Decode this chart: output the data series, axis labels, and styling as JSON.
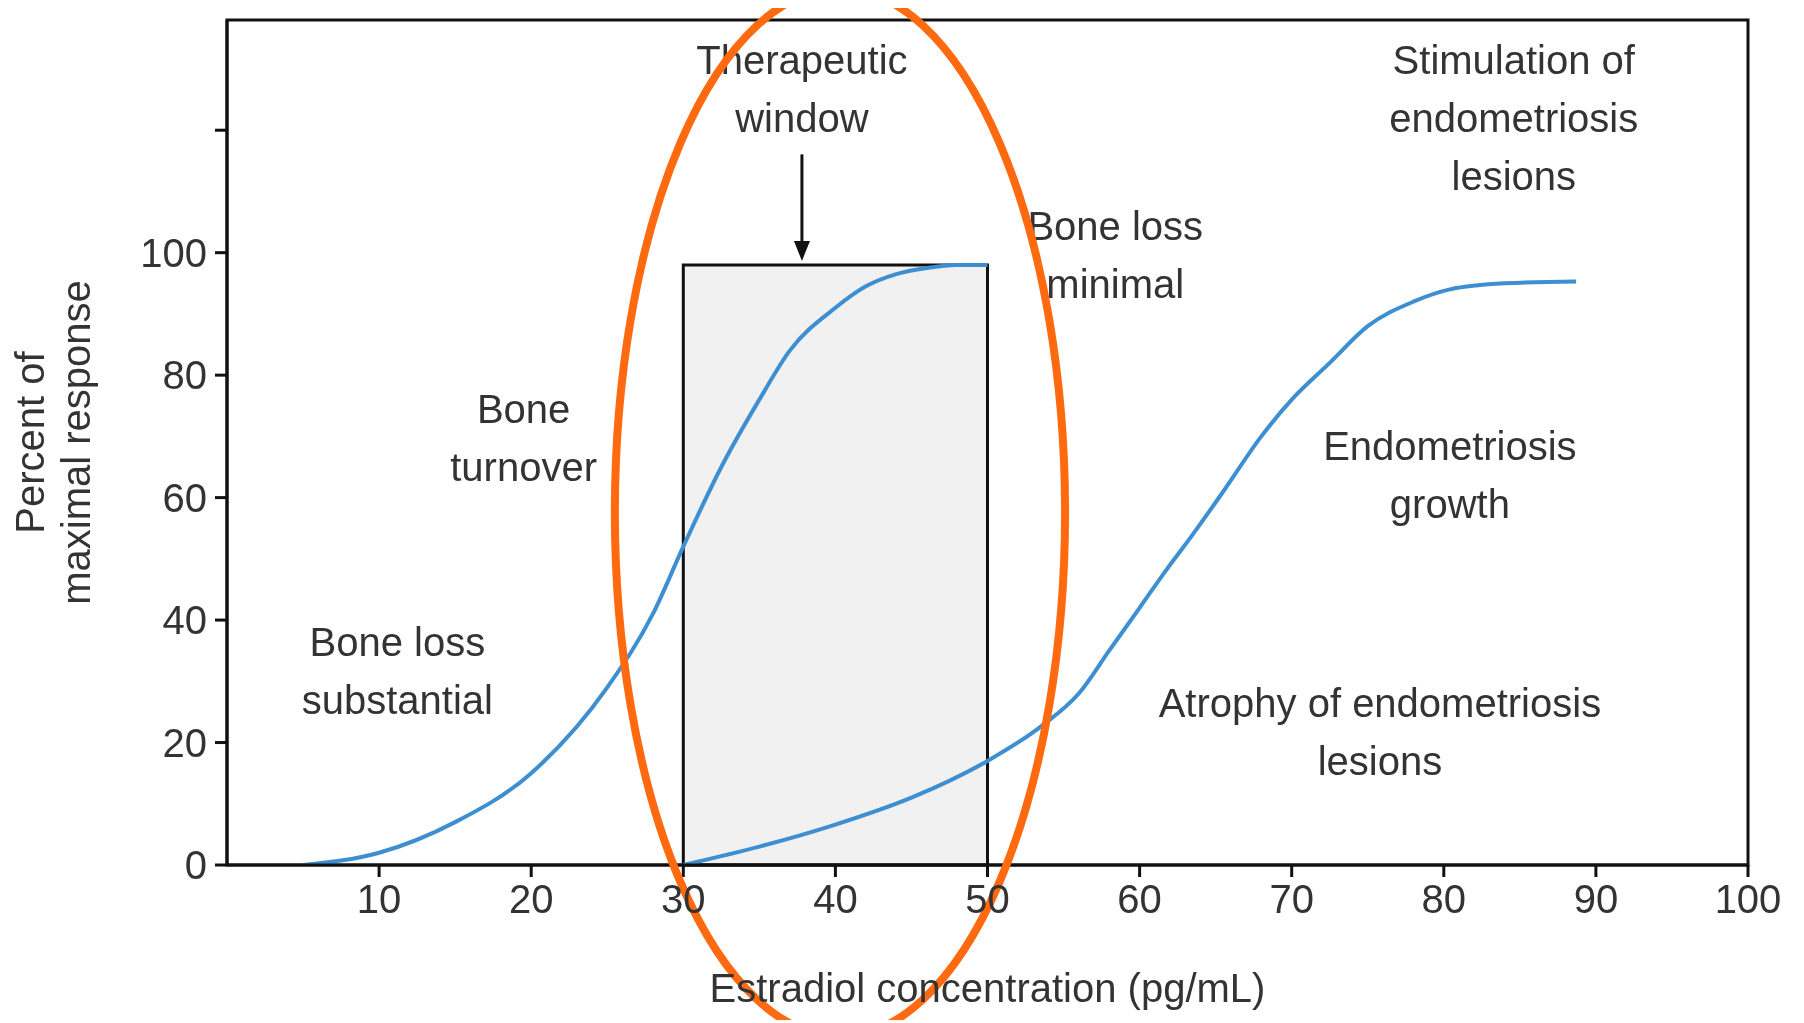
{
  "chart_data": {
    "type": "line",
    "xlabel": "Estradiol concentration (pg/mL)",
    "ylabel": "Percent of\nmaximal response",
    "xlim": [
      0,
      100
    ],
    "xticks": [
      10,
      20,
      30,
      40,
      50,
      60,
      70,
      80,
      90,
      100
    ],
    "ylim": [
      0,
      138
    ],
    "yticks": [
      0,
      20,
      40,
      60,
      80,
      100,
      {
        "value": 120,
        "label": null
      }
    ],
    "series": [
      {
        "color": "#3d8fd1",
        "x": [
          5,
          10,
          15,
          20,
          25,
          28,
          30,
          32.5,
          35,
          37,
          40,
          42,
          44,
          46,
          48,
          50
        ],
        "values": [
          0,
          2,
          7,
          15,
          29,
          41,
          52,
          65,
          76,
          84,
          91,
          94.5,
          96.5,
          97.5,
          98,
          98
        ]
      },
      {
        "color": "#3d8fd1",
        "x": [
          30,
          35,
          40,
          45,
          50,
          53.5,
          56,
          58,
          60,
          61.7,
          63.5,
          65.5,
          68,
          70,
          72.5,
          75,
          78,
          80.4,
          84,
          88.7
        ],
        "values": [
          0,
          3,
          6.6,
          11,
          17,
          22.6,
          28,
          35,
          42,
          48,
          54,
          61,
          70,
          76,
          82,
          88,
          92,
          94,
          95,
          95.3
        ]
      }
    ],
    "bands": [
      {
        "axis": "x",
        "from": 30,
        "to": 50,
        "color": "#111111"
      }
    ],
    "annotations": [
      "Therapeutic\nwindow",
      "Bone loss\nminimal",
      "Stimulation of\nendometriosis\nlesions",
      "Bone\nturnover",
      "Endometriosis\ngrowth",
      "Bone loss\nsubstantial",
      "Atrophy of endometriosis\nlesions"
    ]
  }
}
